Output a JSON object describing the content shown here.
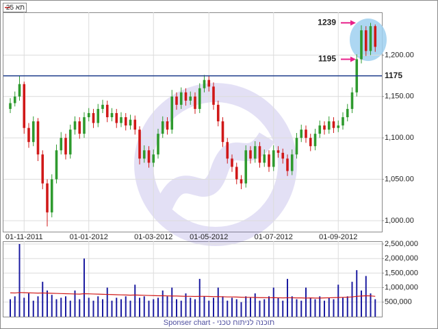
{
  "chart_data": {
    "type": "candlestick",
    "legend_label": "תא 25",
    "footer": "Sponser chart - תוכנה לניתוח טכני",
    "categories": [
      null,
      null,
      null,
      "01-11-2011",
      null,
      null,
      null,
      null,
      null,
      null,
      null,
      null,
      null,
      null,
      null,
      null,
      null,
      "01-01-2012",
      null,
      null,
      null,
      null,
      null,
      null,
      null,
      null,
      null,
      null,
      null,
      null,
      null,
      "01-03-2012",
      null,
      null,
      null,
      null,
      null,
      null,
      null,
      null,
      null,
      null,
      null,
      "01-05-2012",
      null,
      null,
      null,
      null,
      null,
      null,
      null,
      null,
      null,
      null,
      null,
      null,
      null,
      "01-07-2012",
      null,
      null,
      null,
      null,
      null,
      null,
      null,
      null,
      null,
      null,
      null,
      null,
      null,
      "01-09-2012",
      null,
      null,
      null,
      null,
      null,
      null,
      null,
      null
    ],
    "open": [
      1135,
      1142,
      1150,
      1165,
      1112,
      1095,
      1120,
      1080,
      1045,
      1010,
      1050,
      1085,
      1100,
      1080,
      1110,
      1120,
      1105,
      1125,
      1130,
      1118,
      1135,
      1140,
      1125,
      1130,
      1118,
      1125,
      1115,
      1122,
      1110,
      1075,
      1085,
      1070,
      1080,
      1105,
      1120,
      1110,
      1150,
      1140,
      1155,
      1145,
      1150,
      1135,
      1160,
      1170,
      1162,
      1140,
      1120,
      1095,
      1075,
      1065,
      1050,
      1045,
      1085,
      1075,
      1090,
      1070,
      1080,
      1065,
      1085,
      1082,
      1075,
      1060,
      1080,
      1100,
      1110,
      1100,
      1090,
      1105,
      1115,
      1110,
      1120,
      1112,
      1115,
      1125,
      1135,
      1155,
      1195,
      1230,
      1205,
      1235
    ],
    "high": [
      1148,
      1156,
      1175,
      1168,
      1118,
      1126,
      1124,
      1085,
      1050,
      1056,
      1092,
      1107,
      1105,
      1116,
      1126,
      1125,
      1131,
      1136,
      1135,
      1141,
      1146,
      1145,
      1136,
      1135,
      1131,
      1130,
      1128,
      1127,
      1114,
      1091,
      1090,
      1086,
      1111,
      1126,
      1125,
      1158,
      1155,
      1161,
      1160,
      1156,
      1155,
      1166,
      1176,
      1175,
      1167,
      1145,
      1125,
      1100,
      1080,
      1070,
      1055,
      1091,
      1090,
      1096,
      1095,
      1086,
      1085,
      1091,
      1090,
      1087,
      1080,
      1086,
      1106,
      1116,
      1115,
      1105,
      1111,
      1121,
      1120,
      1126,
      1125,
      1121,
      1131,
      1141,
      1161,
      1201,
      1236,
      1235,
      1239,
      1237
    ],
    "low": [
      1130,
      1138,
      1145,
      1105,
      1088,
      1090,
      1072,
      1038,
      993,
      1004,
      1045,
      1080,
      1074,
      1075,
      1104,
      1099,
      1100,
      1120,
      1112,
      1113,
      1130,
      1119,
      1120,
      1112,
      1113,
      1109,
      1110,
      1104,
      1068,
      1070,
      1064,
      1065,
      1075,
      1100,
      1104,
      1105,
      1134,
      1135,
      1139,
      1140,
      1129,
      1130,
      1155,
      1156,
      1134,
      1114,
      1089,
      1069,
      1059,
      1044,
      1038,
      1040,
      1069,
      1070,
      1064,
      1065,
      1059,
      1060,
      1076,
      1069,
      1054,
      1055,
      1075,
      1095,
      1094,
      1084,
      1085,
      1100,
      1104,
      1105,
      1106,
      1107,
      1110,
      1120,
      1130,
      1150,
      1190,
      1199,
      1200,
      1204
    ],
    "close": [
      1142,
      1150,
      1165,
      1112,
      1095,
      1120,
      1080,
      1045,
      1010,
      1050,
      1085,
      1100,
      1080,
      1110,
      1120,
      1105,
      1125,
      1130,
      1118,
      1135,
      1140,
      1125,
      1130,
      1118,
      1125,
      1115,
      1122,
      1110,
      1075,
      1085,
      1070,
      1080,
      1105,
      1120,
      1110,
      1150,
      1140,
      1155,
      1145,
      1150,
      1135,
      1160,
      1170,
      1162,
      1140,
      1120,
      1095,
      1075,
      1065,
      1050,
      1045,
      1085,
      1075,
      1090,
      1070,
      1080,
      1065,
      1085,
      1082,
      1075,
      1060,
      1080,
      1100,
      1110,
      1100,
      1090,
      1105,
      1115,
      1110,
      1120,
      1112,
      1115,
      1125,
      1135,
      1155,
      1195,
      1230,
      1205,
      1235,
      1210
    ],
    "up_color": "#2e9a2e",
    "down_color": "#d01818",
    "ylim": [
      986.7,
      1251.7
    ],
    "yticks": [
      {
        "value": 1000,
        "label": "1,000.00"
      },
      {
        "value": 1050,
        "label": "1,050.00"
      },
      {
        "value": 1100,
        "label": "1,100.00"
      },
      {
        "value": 1150,
        "label": "1,150.00"
      },
      {
        "value": 1200,
        "label": "1,200.00"
      }
    ],
    "hline": 1175,
    "hline_color": "#1a3a8a",
    "annotations": [
      1239,
      1195
    ],
    "annotation_color": "#e8208a",
    "grid": true,
    "volume": {
      "color": "#1a1aa0",
      "average_color": "#d01818",
      "values": [
        600000,
        700000,
        2500000,
        650000,
        800000,
        550000,
        700000,
        1200000,
        900000,
        750000,
        600000,
        650000,
        700000,
        550000,
        900000,
        600000,
        2000000,
        650000,
        550000,
        700000,
        600000,
        1000000,
        550000,
        650000,
        600000,
        700000,
        550000,
        1100000,
        650000,
        700000,
        550000,
        600000,
        650000,
        900000,
        700000,
        1000000,
        600000,
        550000,
        800000,
        650000,
        600000,
        1300000,
        700000,
        550000,
        650000,
        1000000,
        700000,
        550000,
        650000,
        600000,
        500000,
        700000,
        650000,
        800000,
        550000,
        600000,
        700000,
        1000000,
        650000,
        550000,
        1300000,
        700000,
        600000,
        550000,
        1000000,
        650000,
        600000,
        700000,
        550000,
        650000,
        600000,
        1100000,
        650000,
        700000,
        1200000,
        1600000,
        900000,
        1400000,
        800000,
        600000
      ],
      "average": [
        820000,
        815000,
        830000,
        825000,
        820000,
        815000,
        810000,
        815000,
        810000,
        805000,
        800000,
        795000,
        790000,
        785000,
        780000,
        775000,
        790000,
        785000,
        780000,
        775000,
        770000,
        765000,
        760000,
        755000,
        750000,
        745000,
        740000,
        745000,
        740000,
        735000,
        730000,
        725000,
        720000,
        720000,
        715000,
        710000,
        710000,
        705000,
        700000,
        700000,
        695000,
        700000,
        700000,
        695000,
        690000,
        690000,
        685000,
        680000,
        680000,
        675000,
        670000,
        665000,
        665000,
        660000,
        655000,
        655000,
        650000,
        655000,
        650000,
        645000,
        650000,
        650000,
        645000,
        645000,
        640000,
        645000,
        640000,
        640000,
        645000,
        650000,
        655000,
        660000,
        665000,
        670000,
        680000,
        700000,
        710000,
        720000,
        715000,
        700000
      ],
      "ylim": [
        0,
        2594000
      ],
      "yticks": [
        {
          "value": 500000,
          "label": "500,000"
        },
        {
          "value": 1000000,
          "label": "1,000,000"
        },
        {
          "value": 1500000,
          "label": "1,500,000"
        },
        {
          "value": 2000000,
          "label": "2,000,000"
        },
        {
          "value": 2500000,
          "label": "2,500,000"
        }
      ]
    }
  }
}
